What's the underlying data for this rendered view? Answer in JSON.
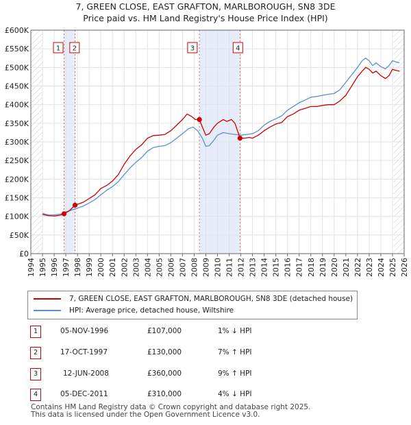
{
  "chart_data": {
    "type": "line",
    "title": "7, GREEN CLOSE, EAST GRAFTON, MARLBOROUGH, SN8 3DE",
    "subtitle": "Price paid vs. HM Land Registry's House Price Index (HPI)",
    "xlabel": "",
    "ylabel": "",
    "xlim": [
      1994,
      2026
    ],
    "ylim": [
      0,
      600000
    ],
    "x_ticks": [
      "1994",
      "1995",
      "1996",
      "1997",
      "1998",
      "1999",
      "2000",
      "2001",
      "2002",
      "2003",
      "2004",
      "2005",
      "2006",
      "2007",
      "2008",
      "2009",
      "2010",
      "2011",
      "2012",
      "2013",
      "2014",
      "2015",
      "2016",
      "2017",
      "2018",
      "2019",
      "2020",
      "2021",
      "2022",
      "2023",
      "2024",
      "2025",
      "2026"
    ],
    "y_ticks": [
      {
        "value": 0,
        "label": "£0"
      },
      {
        "value": 50000,
        "label": "£50K"
      },
      {
        "value": 100000,
        "label": "£100K"
      },
      {
        "value": 150000,
        "label": "£150K"
      },
      {
        "value": 200000,
        "label": "£200K"
      },
      {
        "value": 250000,
        "label": "£250K"
      },
      {
        "value": 300000,
        "label": "£300K"
      },
      {
        "value": 350000,
        "label": "£350K"
      },
      {
        "value": 400000,
        "label": "£400K"
      },
      {
        "value": 450000,
        "label": "£450K"
      },
      {
        "value": 500000,
        "label": "£500K"
      },
      {
        "value": 550000,
        "label": "£550K"
      },
      {
        "value": 600000,
        "label": "£600K"
      }
    ],
    "series": [
      {
        "name": "7, GREEN CLOSE, EAST GRAFTON, MARLBOROUGH, SN8 3DE (detached house)",
        "color": "#cc0000",
        "points": [
          [
            1995,
            105000
          ],
          [
            1995.5,
            102000
          ],
          [
            1996,
            101000
          ],
          [
            1996.5,
            103000
          ],
          [
            1996.85,
            107000
          ],
          [
            1997.3,
            115000
          ],
          [
            1997.79,
            130000
          ],
          [
            1998.5,
            138000
          ],
          [
            1999,
            148000
          ],
          [
            1999.5,
            158000
          ],
          [
            2000,
            175000
          ],
          [
            2000.5,
            183000
          ],
          [
            2001,
            195000
          ],
          [
            2001.5,
            212000
          ],
          [
            2002,
            240000
          ],
          [
            2002.5,
            262000
          ],
          [
            2003,
            280000
          ],
          [
            2003.5,
            292000
          ],
          [
            2004,
            310000
          ],
          [
            2004.5,
            317000
          ],
          [
            2005,
            318000
          ],
          [
            2005.5,
            320000
          ],
          [
            2006,
            330000
          ],
          [
            2006.5,
            345000
          ],
          [
            2007,
            360000
          ],
          [
            2007.4,
            375000
          ],
          [
            2007.8,
            368000
          ],
          [
            2008.1,
            360000
          ],
          [
            2008.45,
            360000
          ],
          [
            2008.7,
            340000
          ],
          [
            2009,
            318000
          ],
          [
            2009.3,
            322000
          ],
          [
            2009.7,
            340000
          ],
          [
            2010,
            350000
          ],
          [
            2010.5,
            360000
          ],
          [
            2010.8,
            355000
          ],
          [
            2011.2,
            360000
          ],
          [
            2011.5,
            350000
          ],
          [
            2011.93,
            310000
          ],
          [
            2012.3,
            310000
          ],
          [
            2012.7,
            312000
          ],
          [
            2013,
            310000
          ],
          [
            2013.5,
            318000
          ],
          [
            2014,
            330000
          ],
          [
            2014.5,
            340000
          ],
          [
            2015,
            348000
          ],
          [
            2015.5,
            352000
          ],
          [
            2016,
            368000
          ],
          [
            2016.5,
            375000
          ],
          [
            2017,
            385000
          ],
          [
            2017.5,
            390000
          ],
          [
            2018,
            395000
          ],
          [
            2018.5,
            395000
          ],
          [
            2019,
            398000
          ],
          [
            2019.5,
            400000
          ],
          [
            2020,
            400000
          ],
          [
            2020.5,
            410000
          ],
          [
            2021,
            425000
          ],
          [
            2021.5,
            450000
          ],
          [
            2022,
            475000
          ],
          [
            2022.4,
            490000
          ],
          [
            2022.7,
            500000
          ],
          [
            2023,
            495000
          ],
          [
            2023.3,
            485000
          ],
          [
            2023.6,
            490000
          ],
          [
            2024,
            478000
          ],
          [
            2024.4,
            470000
          ],
          [
            2024.7,
            478000
          ],
          [
            2025,
            495000
          ],
          [
            2025.3,
            492000
          ],
          [
            2025.6,
            490000
          ]
        ]
      },
      {
        "name": "HPI: Average price, detached house, Wiltshire",
        "color": "#5b8fd0",
        "points": [
          [
            1995,
            108000
          ],
          [
            1995.5,
            104000
          ],
          [
            1996,
            104000
          ],
          [
            1996.5,
            106000
          ],
          [
            1997,
            112000
          ],
          [
            1997.5,
            117000
          ],
          [
            1998,
            122000
          ],
          [
            1998.5,
            128000
          ],
          [
            1999,
            136000
          ],
          [
            1999.5,
            145000
          ],
          [
            2000,
            158000
          ],
          [
            2000.5,
            170000
          ],
          [
            2001,
            180000
          ],
          [
            2001.5,
            193000
          ],
          [
            2002,
            212000
          ],
          [
            2002.5,
            230000
          ],
          [
            2003,
            245000
          ],
          [
            2003.5,
            258000
          ],
          [
            2004,
            275000
          ],
          [
            2004.5,
            285000
          ],
          [
            2005,
            288000
          ],
          [
            2005.5,
            290000
          ],
          [
            2006,
            298000
          ],
          [
            2006.5,
            310000
          ],
          [
            2007,
            322000
          ],
          [
            2007.5,
            335000
          ],
          [
            2007.9,
            340000
          ],
          [
            2008.3,
            330000
          ],
          [
            2008.7,
            310000
          ],
          [
            2009,
            288000
          ],
          [
            2009.3,
            290000
          ],
          [
            2009.7,
            305000
          ],
          [
            2010,
            318000
          ],
          [
            2010.5,
            325000
          ],
          [
            2011,
            322000
          ],
          [
            2011.5,
            320000
          ],
          [
            2012,
            318000
          ],
          [
            2012.5,
            320000
          ],
          [
            2013,
            322000
          ],
          [
            2013.5,
            330000
          ],
          [
            2014,
            345000
          ],
          [
            2014.5,
            355000
          ],
          [
            2015,
            362000
          ],
          [
            2015.5,
            370000
          ],
          [
            2016,
            385000
          ],
          [
            2016.5,
            395000
          ],
          [
            2017,
            405000
          ],
          [
            2017.5,
            412000
          ],
          [
            2018,
            420000
          ],
          [
            2018.5,
            422000
          ],
          [
            2019,
            425000
          ],
          [
            2019.5,
            428000
          ],
          [
            2020,
            430000
          ],
          [
            2020.5,
            440000
          ],
          [
            2021,
            460000
          ],
          [
            2021.5,
            480000
          ],
          [
            2022,
            500000
          ],
          [
            2022.4,
            518000
          ],
          [
            2022.7,
            525000
          ],
          [
            2023,
            518000
          ],
          [
            2023.3,
            505000
          ],
          [
            2023.6,
            512000
          ],
          [
            2024,
            502000
          ],
          [
            2024.4,
            496000
          ],
          [
            2024.7,
            505000
          ],
          [
            2025,
            518000
          ],
          [
            2025.3,
            515000
          ],
          [
            2025.6,
            512000
          ]
        ]
      }
    ],
    "sales": [
      {
        "id": "1",
        "x": 1996.85,
        "value": 107000
      },
      {
        "id": "2",
        "x": 1997.79,
        "value": 130000
      },
      {
        "id": "3",
        "x": 2008.45,
        "value": 360000
      },
      {
        "id": "4",
        "x": 2011.93,
        "value": 310000
      }
    ],
    "shaded_ranges": [
      [
        1996.85,
        1997.79
      ],
      [
        2008.45,
        2011.93
      ]
    ],
    "hatched_ranges": [
      [
        1994,
        1995
      ],
      [
        2025.1,
        2026
      ]
    ]
  },
  "legend": {
    "red_label": "7, GREEN CLOSE, EAST GRAFTON, MARLBOROUGH, SN8 3DE (detached house)",
    "blue_label": "HPI: Average price, detached house, Wiltshire",
    "red_color": "#cc0000",
    "blue_color": "#5b8fd0"
  },
  "transactions": [
    {
      "num": "1",
      "date": "05-NOV-1996",
      "price": "£107,000",
      "hpi": "1% ↓ HPI"
    },
    {
      "num": "2",
      "date": "17-OCT-1997",
      "price": "£130,000",
      "hpi": "7% ↑ HPI"
    },
    {
      "num": "3",
      "date": "12-JUN-2008",
      "price": "£360,000",
      "hpi": "9% ↑ HPI"
    },
    {
      "num": "4",
      "date": "05-DEC-2011",
      "price": "£310,000",
      "hpi": "4% ↓ HPI"
    }
  ],
  "footer": {
    "line1": "Contains HM Land Registry data © Crown copyright and database right 2025.",
    "line2": "This data is licensed under the Open Government Licence v3.0."
  }
}
